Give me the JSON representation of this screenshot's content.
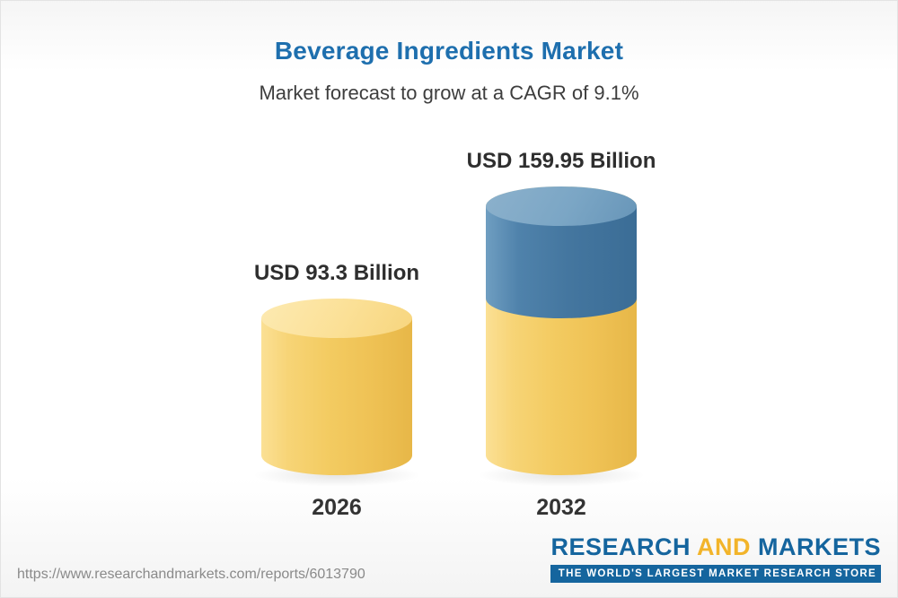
{
  "header": {
    "title": "Beverage Ingredients Market",
    "subtitle": "Market forecast to grow at a CAGR of 9.1%"
  },
  "chart_data": {
    "type": "bar",
    "variant": "3d-cylinder",
    "categories": [
      "2026",
      "2032"
    ],
    "values": [
      93.3,
      159.95
    ],
    "value_labels": [
      "USD 93.3 Billion",
      "USD 159.95 Billion"
    ],
    "unit": "USD Billion",
    "cagr_percent": 9.1,
    "ylim": [
      0,
      170
    ],
    "grid": false,
    "legend": "none",
    "series_colors": {
      "base": "#f3cb61",
      "growth": "#44769f"
    },
    "notes": "2032 cylinder shows base value in yellow with growth segment (159.95 - 93.3) stacked in blue on top"
  },
  "footer": {
    "url": "https://www.researchandmarkets.com/reports/6013790",
    "logo": {
      "research": "RESEARCH",
      "and": "AND",
      "markets": "MARKETS",
      "tagline": "THE WORLD'S LARGEST MARKET RESEARCH STORE"
    }
  },
  "colors": {
    "title": "#1e6fae",
    "subtitle": "#3d3d3d",
    "bar_yellow": "#f3cb61",
    "bar_blue": "#44769f",
    "logo_blue": "#15659e",
    "logo_gold": "#f2b42a"
  }
}
